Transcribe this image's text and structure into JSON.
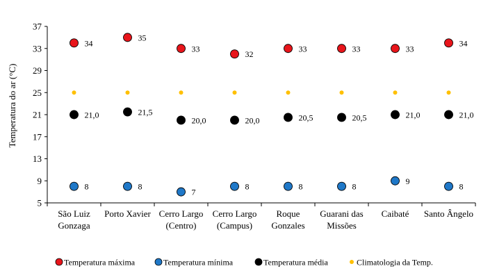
{
  "chart_data": {
    "type": "scatter",
    "ylabel": "Temperatura do ar (°C)",
    "xlabel": "",
    "ylim": [
      5,
      37
    ],
    "yticks": [
      "5",
      "9",
      "13",
      "17",
      "21",
      "25",
      "29",
      "33",
      "37"
    ],
    "grid": false,
    "legend_position": "bottom",
    "categories": [
      [
        "São Luiz",
        "Gonzaga"
      ],
      [
        "Porto Xavier"
      ],
      [
        "Cerro Largo",
        "(Centro)"
      ],
      [
        "Cerro Largo",
        "(Campus)"
      ],
      [
        "Roque",
        "Gonzales"
      ],
      [
        "Guarani das",
        "Missões"
      ],
      [
        "Caibaté"
      ],
      [
        "Santo Ângelo"
      ]
    ],
    "series": [
      {
        "name": "Temperatura máxima",
        "color": "#e8151b",
        "values": [
          34,
          35,
          33,
          32,
          33,
          33,
          33,
          34
        ],
        "labels": [
          "34",
          "35",
          "33",
          "32",
          "33",
          "33",
          "33",
          "34"
        ]
      },
      {
        "name": "Temperatura mínima",
        "color": "#1f78c8",
        "values": [
          8,
          8,
          7,
          8,
          8,
          8,
          9,
          8
        ],
        "labels": [
          "8",
          "8",
          "7",
          "8",
          "8",
          "8",
          "9",
          "8"
        ]
      },
      {
        "name": "Temperatura média",
        "color": "#000000",
        "values": [
          21.0,
          21.5,
          20.0,
          20.0,
          20.5,
          20.5,
          21.0,
          21.0
        ],
        "labels": [
          "21,0",
          "21,5",
          "20,0",
          "20,0",
          "20,5",
          "20,5",
          "21,0",
          "21,0"
        ]
      },
      {
        "name": "Climatologia da Temp.",
        "color": "#ffc000",
        "values": [
          25,
          25,
          25,
          25,
          25,
          25,
          25,
          25
        ],
        "labels": []
      }
    ]
  }
}
